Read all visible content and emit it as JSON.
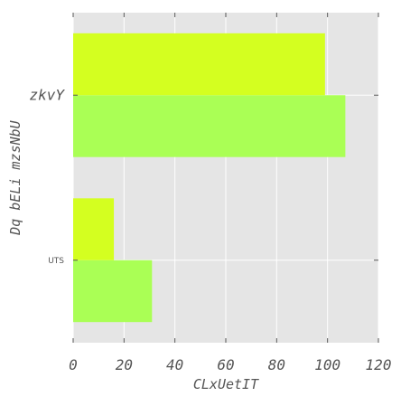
{
  "chart_data": {
    "type": "bar",
    "orientation": "horizontal",
    "categories": [
      "UTS",
      "zkvY"
    ],
    "series": [
      {
        "values": [
          31,
          107
        ],
        "color": "#aaff55"
      },
      {
        "values": [
          16,
          99
        ],
        "color": "#d4ff20"
      }
    ],
    "xlabel": "CLxUetIT",
    "ylabel": "Dq bELi mzsNbU",
    "xlim": [
      0,
      120
    ],
    "xticks": [
      "0",
      "20",
      "40",
      "60",
      "80",
      "100",
      "120"
    ],
    "grid": true,
    "legend": "none",
    "plot_background": "#e5e5e5",
    "grid_color": "#ffffff"
  }
}
